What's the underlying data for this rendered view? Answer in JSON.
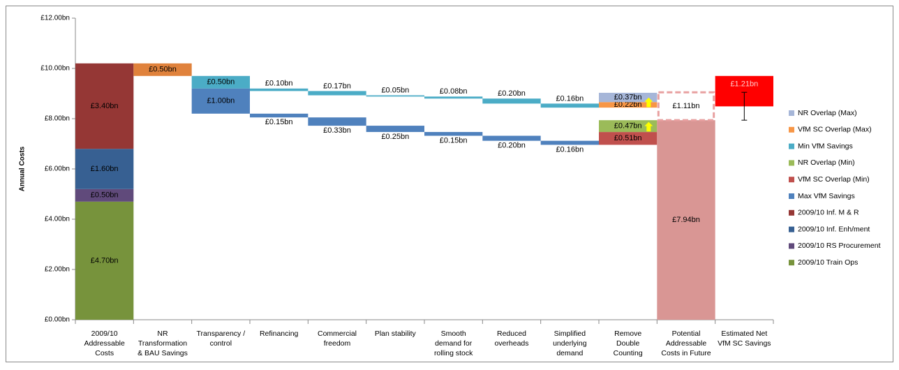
{
  "chart_data": {
    "type": "waterfall",
    "ylabel": "Annual Costs",
    "categories": [
      [
        "2009/10",
        "Addressable",
        "Costs"
      ],
      [
        "NR",
        "Transformation",
        "& BAU Savings"
      ],
      [
        "Transparency /",
        "control"
      ],
      [
        "Refinancing"
      ],
      [
        "Commercial",
        "freedom"
      ],
      [
        "Plan stability"
      ],
      [
        "Smooth",
        "demand for",
        "rolling stock"
      ],
      [
        "Reduced",
        "overheads"
      ],
      [
        "Simplified",
        "underlying",
        "demand"
      ],
      [
        "Remove",
        "Double",
        "Counting"
      ],
      [
        "Potential",
        "Addressable",
        "Costs in Future"
      ],
      [
        "Estimated Net",
        "VfM SC Savings"
      ]
    ],
    "ylim": [
      0,
      12
    ],
    "yticks": [
      {
        "value": 0,
        "label": "£0.00bn"
      },
      {
        "value": 2,
        "label": "£2.00bn"
      },
      {
        "value": 4,
        "label": "£4.00bn"
      },
      {
        "value": 6,
        "label": "£6.00bn"
      },
      {
        "value": 8,
        "label": "£8.00bn"
      },
      {
        "value": 10,
        "label": "£10.00bn"
      },
      {
        "value": 12,
        "label": "£12.00bn"
      }
    ],
    "series": [
      {
        "name": "NR Overlap  (Max)",
        "color": "#a6b6d8",
        "values": [
          null,
          null,
          null,
          null,
          null,
          null,
          null,
          null,
          null,
          0.37,
          null,
          null
        ],
        "value_labels": [
          null,
          null,
          null,
          null,
          null,
          null,
          null,
          null,
          null,
          "£0.37bn",
          null,
          null
        ]
      },
      {
        "name": "VfM SC Overlap  (Max)",
        "color": "#f79646",
        "values": [
          null,
          null,
          null,
          null,
          null,
          null,
          null,
          null,
          null,
          0.22,
          null,
          null
        ],
        "value_labels": [
          null,
          null,
          null,
          null,
          null,
          null,
          null,
          null,
          null,
          "£0.22bn",
          null,
          null
        ]
      },
      {
        "name": "Min VfM Savings",
        "color": "#4bacc6",
        "values": [
          null,
          null,
          0.5,
          0.1,
          0.17,
          0.05,
          0.08,
          0.2,
          0.16,
          null,
          null,
          null
        ],
        "value_labels": [
          null,
          null,
          "£0.50bn",
          "£0.10bn",
          "£0.17bn",
          "£0.05bn",
          "£0.08bn",
          "£0.20bn",
          "£0.16bn",
          null,
          null,
          null
        ]
      },
      {
        "name": "NR Overlap (Min)",
        "color": "#9bbb59",
        "values": [
          null,
          null,
          null,
          null,
          null,
          null,
          null,
          null,
          null,
          0.47,
          null,
          null
        ],
        "value_labels": [
          null,
          null,
          null,
          null,
          null,
          null,
          null,
          null,
          null,
          "£0.47bn",
          null,
          null
        ]
      },
      {
        "name": "VfM SC Overlap (Min)",
        "color": "#c0504d",
        "values": [
          null,
          null,
          null,
          null,
          null,
          null,
          null,
          null,
          null,
          0.51,
          null,
          null
        ],
        "value_labels": [
          null,
          null,
          null,
          null,
          null,
          null,
          null,
          null,
          null,
          "£0.51bn",
          null,
          null
        ]
      },
      {
        "name": "Max VfM Savings",
        "color": "#4f81bd",
        "values": [
          null,
          null,
          1.0,
          0.15,
          0.33,
          0.25,
          0.15,
          0.2,
          0.16,
          null,
          null,
          null
        ],
        "value_labels": [
          null,
          null,
          "£1.00bn",
          "£0.15bn",
          "£0.33bn",
          "£0.25bn",
          "£0.15bn",
          "£0.20bn",
          "£0.16bn",
          null,
          null,
          null
        ]
      },
      {
        "name": "2009/10 Inf. M & R",
        "color": "#953735",
        "values": [
          3.4,
          null,
          null,
          null,
          null,
          null,
          null,
          null,
          null,
          null,
          null,
          null
        ],
        "value_labels": [
          "£3.40bn",
          null,
          null,
          null,
          null,
          null,
          null,
          null,
          null,
          null,
          null,
          null
        ]
      },
      {
        "name": "2009/10 Inf. Enh/ment",
        "color": "#376092",
        "values": [
          1.6,
          null,
          null,
          null,
          null,
          null,
          null,
          null,
          null,
          null,
          null,
          null
        ],
        "value_labels": [
          "£1.60bn",
          null,
          null,
          null,
          null,
          null,
          null,
          null,
          null,
          null,
          null,
          null
        ]
      },
      {
        "name": "2009/10 RS Procurement",
        "color": "#604a7b",
        "values": [
          0.5,
          null,
          null,
          null,
          null,
          null,
          null,
          null,
          null,
          null,
          null,
          null
        ],
        "value_labels": [
          "£0.50bn",
          null,
          null,
          null,
          null,
          null,
          null,
          null,
          null,
          null,
          null,
          null
        ]
      },
      {
        "name": "2009/10 Train Ops",
        "color": "#77933c",
        "values": [
          4.7,
          null,
          null,
          null,
          null,
          null,
          null,
          null,
          null,
          null,
          null,
          null
        ],
        "value_labels": [
          "£4.70bn",
          null,
          null,
          null,
          null,
          null,
          null,
          null,
          null,
          null,
          null,
          null
        ]
      }
    ],
    "transformation": {
      "value": 0.5,
      "label": "£0.50bn",
      "color": "#e0823c"
    },
    "future_costs": {
      "value": 7.94,
      "label": "£7.94bn",
      "color": "#d99694"
    },
    "gap": {
      "value": 1.11,
      "label": "£1.11bn",
      "color": "#e8a0a0"
    },
    "net_savings": {
      "value": 1.21,
      "label": "£1.21bn",
      "color": "#ff0000"
    }
  }
}
